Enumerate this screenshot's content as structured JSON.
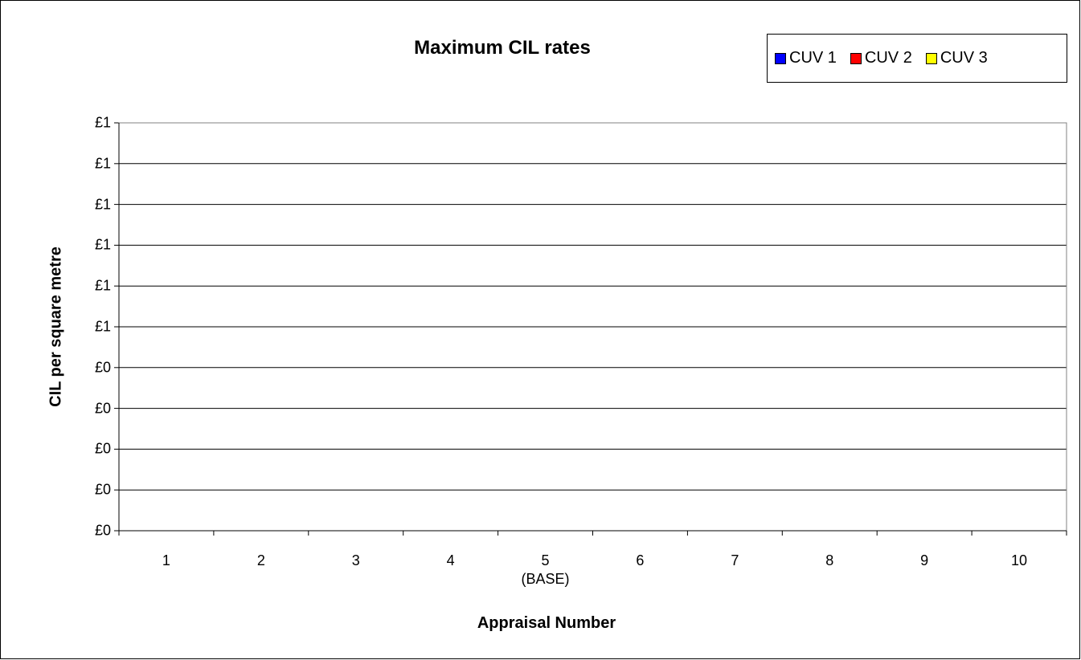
{
  "chart_data": {
    "type": "bar",
    "title": "Maximum CIL rates",
    "xlabel": "Appraisal Number",
    "ylabel": "CIL per square metre",
    "categories": [
      "1",
      "2",
      "3",
      "4",
      "5",
      "6",
      "7",
      "8",
      "9",
      "10"
    ],
    "category_sublabels": [
      "",
      "",
      "",
      "",
      "(BASE)",
      "",
      "",
      "",
      "",
      ""
    ],
    "y_tick_labels": [
      "£0",
      "£0",
      "£0",
      "£0",
      "£0",
      "£1",
      "£1",
      "£1",
      "£1",
      "£1",
      "£1"
    ],
    "ylim": [
      0,
      1
    ],
    "grid": true,
    "legend_position": "top-right",
    "series": [
      {
        "name": "CUV 1",
        "color": "#0000ff",
        "values": [
          0,
          0,
          0,
          0,
          0,
          0,
          0,
          0,
          0,
          0
        ]
      },
      {
        "name": "CUV 2",
        "color": "#ff0000",
        "values": [
          0,
          0,
          0,
          0,
          0,
          0,
          0,
          0,
          0,
          0
        ]
      },
      {
        "name": "CUV 3",
        "color": "#ffff00",
        "values": [
          0,
          0,
          0,
          0,
          0,
          0,
          0,
          0,
          0,
          0
        ]
      }
    ]
  }
}
